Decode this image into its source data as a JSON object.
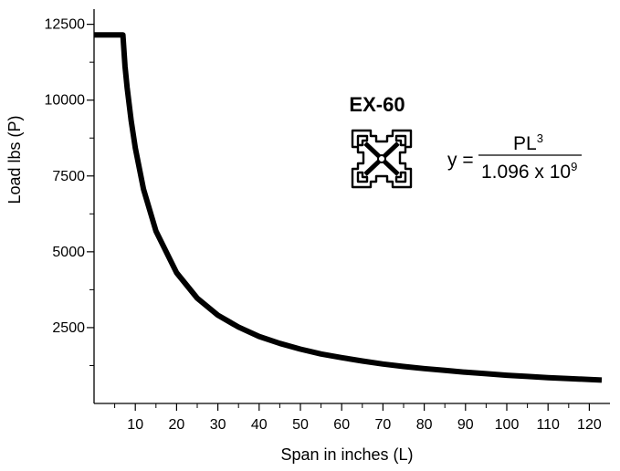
{
  "chart_data": {
    "type": "line",
    "xlabel": "Span in inches (L)",
    "ylabel": "Load lbs (P)",
    "xlim": [
      0,
      125
    ],
    "ylim": [
      0,
      13000
    ],
    "x_ticks": [
      10,
      20,
      30,
      40,
      50,
      60,
      70,
      80,
      90,
      100,
      110,
      120
    ],
    "x_minor_ticks": [
      5,
      15,
      25,
      35,
      45,
      55,
      65,
      75,
      85,
      95,
      105,
      115
    ],
    "y_ticks": [
      2500,
      5000,
      7500,
      10000,
      12500
    ],
    "y_minor_ticks": [
      1250,
      3750,
      6250,
      8750,
      11250
    ],
    "grid": false,
    "series": [
      {
        "color": "#000000",
        "points": [
          [
            0,
            12150
          ],
          [
            7,
            12150
          ],
          [
            7.5,
            11120
          ],
          [
            8,
            10420
          ],
          [
            9,
            9310
          ],
          [
            10,
            8420
          ],
          [
            12,
            7060
          ],
          [
            15,
            5680
          ],
          [
            20,
            4310
          ],
          [
            25,
            3470
          ],
          [
            30,
            2910
          ],
          [
            35,
            2520
          ],
          [
            40,
            2210
          ],
          [
            45,
            1980
          ],
          [
            50,
            1790
          ],
          [
            55,
            1630
          ],
          [
            60,
            1510
          ],
          [
            65,
            1400
          ],
          [
            70,
            1300
          ],
          [
            75,
            1220
          ],
          [
            80,
            1150
          ],
          [
            85,
            1090
          ],
          [
            90,
            1030
          ],
          [
            95,
            980
          ],
          [
            100,
            930
          ],
          [
            105,
            890
          ],
          [
            110,
            850
          ],
          [
            115,
            820
          ],
          [
            120,
            790
          ],
          [
            123,
            770
          ]
        ]
      }
    ]
  },
  "annotation": {
    "title": "EX-60",
    "profile_icon": "aluminum-extrusion-profile-icon",
    "formula_lhs": "y =",
    "numerator": "PL",
    "numerator_exp": "3",
    "denominator": "1.096 x 10",
    "denominator_exp": "9"
  }
}
